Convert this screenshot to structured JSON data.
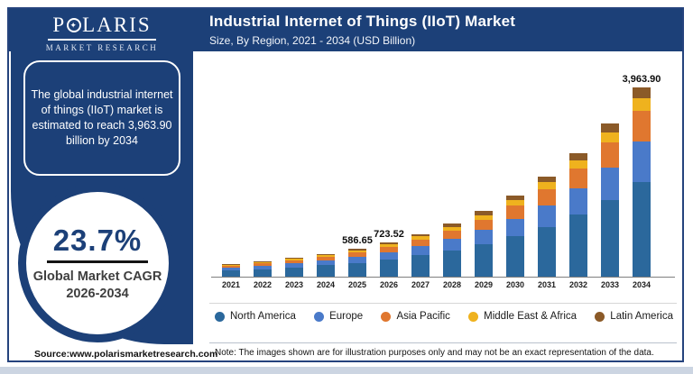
{
  "header": {
    "title": "Industrial Internet of Things (IIoT) Market",
    "subtitle": "Size, By Region, 2021 - 2034 (USD Billion)"
  },
  "sidebar": {
    "logo": {
      "name": "P",
      "name_rest": "LARIS",
      "sub": "MARKET RESEARCH",
      "star": "✦"
    },
    "callout": "The global industrial internet of things (IIoT) market is estimated to reach 3,963.90 billion by 2034",
    "cagr": {
      "value": "23.7%",
      "label_line1": "Global Market CAGR",
      "label_line2": "2026-2034"
    },
    "source": "Source:www.polarismarketresearch.com"
  },
  "footer_note": "Note: The images shown are for illustration purposes only and may not be an exact representation of the data.",
  "colors": {
    "brand_navy": "#1c4078",
    "frame_border": "#25437d",
    "cagr_text": "#1c4078"
  },
  "chart_data": {
    "type": "bar",
    "stacked": true,
    "title": "Industrial Internet of Things (IIoT) Market",
    "subtitle": "Size, By Region, 2021 - 2034 (USD Billion)",
    "unit": "USD Billion",
    "grid": false,
    "legend_position": "bottom",
    "ylim": [
      0,
      4000
    ],
    "categories": [
      "2021",
      "2022",
      "2023",
      "2024",
      "2025",
      "2026",
      "2027",
      "2028",
      "2029",
      "2030",
      "2031",
      "2032",
      "2033",
      "2034"
    ],
    "totals": [
      260,
      320,
      395,
      480,
      586.65,
      723.52,
      895,
      1107,
      1369,
      1694,
      2095,
      2592,
      3206,
      3963.9
    ],
    "labeled_totals": {
      "2025": "586.65",
      "2026": "723.52",
      "2034": "3,963.90"
    },
    "series": [
      {
        "name": "North America",
        "color": "#2b689c",
        "values": [
          130,
          160,
          197.5,
          240,
          293.3,
          361.8,
          447.5,
          553.5,
          684.5,
          847,
          1047.5,
          1296,
          1603,
          1982
        ]
      },
      {
        "name": "Europe",
        "color": "#4a7ac9",
        "values": [
          55.9,
          68.8,
          84.9,
          103.2,
          126.1,
          155.6,
          192.4,
          238.0,
          294.3,
          364.2,
          450.4,
          557.3,
          689.3,
          852.2
        ]
      },
      {
        "name": "Asia Pacific",
        "color": "#e0772f",
        "values": [
          41.6,
          51.2,
          63.2,
          76.8,
          93.9,
          115.8,
          143.2,
          177.1,
          219.0,
          271.0,
          335.2,
          414.7,
          513.0,
          634.2
        ]
      },
      {
        "name": "Middle East & Africa",
        "color": "#efb21e",
        "values": [
          17.4,
          21.4,
          26.5,
          32.2,
          39.3,
          48.5,
          60.0,
          74.2,
          91.7,
          113.5,
          140.4,
          173.7,
          214.8,
          265.6
        ]
      },
      {
        "name": "Latin America",
        "color": "#8b5a28",
        "values": [
          15.1,
          18.6,
          22.9,
          27.8,
          34.0,
          42.0,
          51.9,
          64.2,
          79.4,
          98.3,
          121.5,
          150.3,
          186.0,
          229.9
        ]
      }
    ]
  }
}
